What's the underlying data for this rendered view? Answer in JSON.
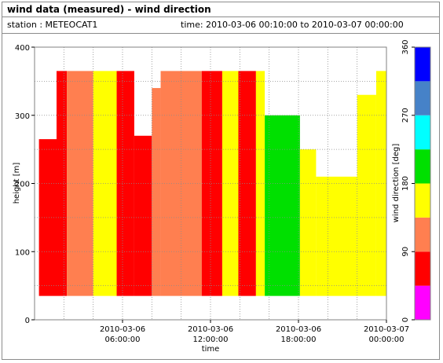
{
  "header": {
    "title": "wind data (measured) - wind direction",
    "station": "station : METEOCAT1",
    "timerange": "time: 2010-03-06 00:10:00 to 2010-03-07 00:00:00"
  },
  "colors": {
    "magenta": "#ff00ff",
    "red": "#ff0000",
    "orange": "#ff7f50",
    "yellow": "#ffff00",
    "green": "#00e000",
    "cyan": "#00ffff",
    "steelblue": "#4682c8",
    "blue": "#0000ff"
  },
  "chart_data": {
    "type": "heatmap",
    "xlabel": "time",
    "ylabel": "height [m]",
    "colorbar_label": "wind direction [deg]",
    "ylim": [
      0,
      400
    ],
    "yticks": [
      "0",
      "100",
      "200",
      "300",
      "400"
    ],
    "xlim_hours": [
      0,
      24
    ],
    "xticks": [
      {
        "hour": 6,
        "line1": "2010-03-06",
        "line2": "06:00:00"
      },
      {
        "hour": 12,
        "line1": "2010-03-06",
        "line2": "12:00:00"
      },
      {
        "hour": 18,
        "line1": "2010-03-06",
        "line2": "18:00:00"
      },
      {
        "hour": 24,
        "line1": "2010-03-07",
        "line2": "00:00:00"
      }
    ],
    "colorbar_ticks": [
      "0",
      "90",
      "180",
      "270",
      "360"
    ],
    "colorbar_bins": [
      {
        "from": 0,
        "to": 45,
        "color": "magenta"
      },
      {
        "from": 45,
        "to": 90,
        "color": "red"
      },
      {
        "from": 90,
        "to": 135,
        "color": "orange"
      },
      {
        "from": 135,
        "to": 180,
        "color": "yellow"
      },
      {
        "from": 180,
        "to": 225,
        "color": "green"
      },
      {
        "from": 225,
        "to": 270,
        "color": "cyan"
      },
      {
        "from": 270,
        "to": 315,
        "color": "steelblue"
      },
      {
        "from": 315,
        "to": 360,
        "color": "blue"
      }
    ],
    "grid": true,
    "data_height_range_m": [
      35,
      365
    ],
    "segments": [
      {
        "t0": 0.3,
        "t1": 1.5,
        "top": 265,
        "color": "red"
      },
      {
        "t0": 1.5,
        "t1": 2.2,
        "top": 365,
        "color": "red"
      },
      {
        "t0": 2.2,
        "t1": 4.0,
        "top": 365,
        "color": "orange"
      },
      {
        "t0": 4.0,
        "t1": 5.6,
        "top": 365,
        "color": "yellow"
      },
      {
        "t0": 5.6,
        "t1": 6.8,
        "top": 365,
        "color": "red"
      },
      {
        "t0": 6.8,
        "t1": 8.0,
        "top": 270,
        "color": "red"
      },
      {
        "t0": 8.0,
        "t1": 8.6,
        "top": 340,
        "color": "orange"
      },
      {
        "t0": 8.6,
        "t1": 11.4,
        "top": 365,
        "color": "orange"
      },
      {
        "t0": 11.4,
        "t1": 12.8,
        "top": 365,
        "color": "red"
      },
      {
        "t0": 12.8,
        "t1": 13.9,
        "top": 365,
        "color": "yellow"
      },
      {
        "t0": 13.9,
        "t1": 15.1,
        "top": 365,
        "color": "red"
      },
      {
        "t0": 15.1,
        "t1": 15.7,
        "top": 365,
        "color": "yellow"
      },
      {
        "t0": 15.7,
        "t1": 18.1,
        "top": 300,
        "color": "green"
      },
      {
        "t0": 18.1,
        "t1": 19.2,
        "top": 250,
        "color": "yellow"
      },
      {
        "t0": 19.2,
        "t1": 22.0,
        "top": 210,
        "color": "yellow"
      },
      {
        "t0": 22.0,
        "t1": 23.3,
        "top": 330,
        "color": "yellow"
      },
      {
        "t0": 23.3,
        "t1": 24.0,
        "top": 365,
        "color": "yellow"
      }
    ]
  }
}
